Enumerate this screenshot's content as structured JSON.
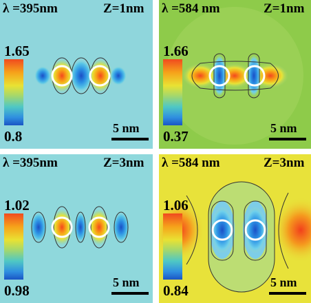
{
  "panels": [
    {
      "wavelength": "λ =395nm",
      "z": "Z=1nm",
      "cbar_max": "1.65",
      "cbar_min": "0.8",
      "scale": "5 nm",
      "bg": "#8fd6dc"
    },
    {
      "wavelength": "λ =584 nm",
      "z": "Z=1nm",
      "cbar_max": "1.66",
      "cbar_min": "0.37",
      "scale": "5 nm",
      "bg": "#8ecb4a"
    },
    {
      "wavelength": "λ =395nm",
      "z": "Z=3nm",
      "cbar_max": "1.02",
      "cbar_min": "0.98",
      "scale": "5 nm",
      "bg": "#8fd8dc"
    },
    {
      "wavelength": "λ =584 nm",
      "z": "Z=3nm",
      "cbar_max": "1.06",
      "cbar_min": "0.84",
      "scale": "5 nm",
      "bg": "#e8e23a"
    }
  ]
}
